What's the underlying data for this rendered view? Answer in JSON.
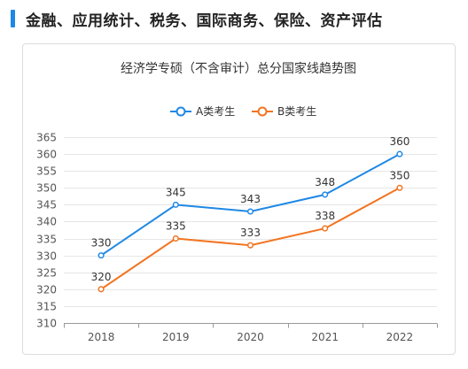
{
  "page": {
    "heading": "金融、应用统计、税务、国际商务、保险、资产评估"
  },
  "chart_data": {
    "type": "line",
    "title": "经济学专硕（不含审计）总分国家线趋势图",
    "categories": [
      "2018",
      "2019",
      "2020",
      "2021",
      "2022"
    ],
    "series": [
      {
        "name": "A类考生",
        "values": [
          330,
          345,
          343,
          348,
          360
        ],
        "color": "#1E88E5"
      },
      {
        "name": "B类考生",
        "values": [
          320,
          335,
          333,
          338,
          350
        ],
        "color": "#F27420"
      }
    ],
    "ylim": [
      310,
      365
    ],
    "yticks": [
      310,
      315,
      320,
      325,
      330,
      335,
      340,
      345,
      350,
      355,
      360,
      365
    ],
    "xlabel": "",
    "ylabel": "",
    "grid": true,
    "legend_position": "top-center"
  }
}
